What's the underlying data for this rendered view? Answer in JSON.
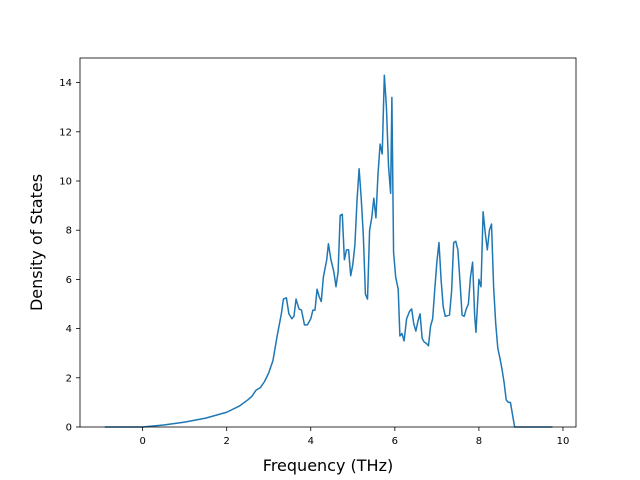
{
  "chart_data": {
    "type": "line",
    "title": "",
    "xlabel": "Frequency (THz)",
    "ylabel": "Density of States",
    "xlim": [
      -1.49,
      10.31
    ],
    "ylim": [
      0,
      15
    ],
    "xticks": [
      0,
      2,
      4,
      6,
      8,
      10
    ],
    "yticks": [
      0,
      2,
      4,
      6,
      8,
      10,
      12,
      14
    ],
    "xtick_labels": [
      "0",
      "2",
      "4",
      "6",
      "8",
      "10"
    ],
    "ytick_labels": [
      "0",
      "2",
      "4",
      "6",
      "8",
      "10",
      "12",
      "14"
    ],
    "grid": false,
    "legend": "none",
    "series": [
      {
        "color": "#1f77b4",
        "points": [
          [
            -0.9,
            0.0
          ],
          [
            0.0,
            0.0
          ],
          [
            0.5,
            0.08
          ],
          [
            1.0,
            0.2
          ],
          [
            1.5,
            0.36
          ],
          [
            2.0,
            0.6
          ],
          [
            2.3,
            0.85
          ],
          [
            2.5,
            1.1
          ],
          [
            2.6,
            1.25
          ],
          [
            2.7,
            1.5
          ],
          [
            2.8,
            1.6
          ],
          [
            2.9,
            1.85
          ],
          [
            3.0,
            2.2
          ],
          [
            3.1,
            2.7
          ],
          [
            3.2,
            3.7
          ],
          [
            3.3,
            4.6
          ],
          [
            3.35,
            5.2
          ],
          [
            3.42,
            5.25
          ],
          [
            3.48,
            4.6
          ],
          [
            3.55,
            4.4
          ],
          [
            3.6,
            4.5
          ],
          [
            3.65,
            5.2
          ],
          [
            3.72,
            4.8
          ],
          [
            3.78,
            4.75
          ],
          [
            3.85,
            4.15
          ],
          [
            3.92,
            4.15
          ],
          [
            4.0,
            4.4
          ],
          [
            4.05,
            4.75
          ],
          [
            4.1,
            4.75
          ],
          [
            4.15,
            5.6
          ],
          [
            4.2,
            5.3
          ],
          [
            4.25,
            5.1
          ],
          [
            4.3,
            6.1
          ],
          [
            4.38,
            6.8
          ],
          [
            4.42,
            7.45
          ],
          [
            4.48,
            6.8
          ],
          [
            4.55,
            6.3
          ],
          [
            4.6,
            5.7
          ],
          [
            4.65,
            6.3
          ],
          [
            4.7,
            8.6
          ],
          [
            4.75,
            8.65
          ],
          [
            4.8,
            6.8
          ],
          [
            4.85,
            7.2
          ],
          [
            4.9,
            7.2
          ],
          [
            4.95,
            6.15
          ],
          [
            5.0,
            6.6
          ],
          [
            5.05,
            7.4
          ],
          [
            5.1,
            9.2
          ],
          [
            5.15,
            10.5
          ],
          [
            5.2,
            9.3
          ],
          [
            5.25,
            7.8
          ],
          [
            5.3,
            5.4
          ],
          [
            5.35,
            5.2
          ],
          [
            5.4,
            8.0
          ],
          [
            5.45,
            8.5
          ],
          [
            5.5,
            9.3
          ],
          [
            5.55,
            8.5
          ],
          [
            5.6,
            10.3
          ],
          [
            5.65,
            11.5
          ],
          [
            5.7,
            11.1
          ],
          [
            5.75,
            14.3
          ],
          [
            5.8,
            13.0
          ],
          [
            5.85,
            10.6
          ],
          [
            5.9,
            9.5
          ],
          [
            5.93,
            13.4
          ],
          [
            5.97,
            7.1
          ],
          [
            6.02,
            6.1
          ],
          [
            6.08,
            5.6
          ],
          [
            6.12,
            3.7
          ],
          [
            6.17,
            3.8
          ],
          [
            6.22,
            3.5
          ],
          [
            6.28,
            4.4
          ],
          [
            6.35,
            4.7
          ],
          [
            6.4,
            4.8
          ],
          [
            6.45,
            4.2
          ],
          [
            6.5,
            3.9
          ],
          [
            6.55,
            4.3
          ],
          [
            6.6,
            4.6
          ],
          [
            6.65,
            3.6
          ],
          [
            6.7,
            3.45
          ],
          [
            6.75,
            3.4
          ],
          [
            6.8,
            3.3
          ],
          [
            6.85,
            4.1
          ],
          [
            6.9,
            4.4
          ],
          [
            6.95,
            5.6
          ],
          [
            7.0,
            6.7
          ],
          [
            7.05,
            7.5
          ],
          [
            7.1,
            6.0
          ],
          [
            7.15,
            4.9
          ],
          [
            7.2,
            4.5
          ],
          [
            7.3,
            4.55
          ],
          [
            7.35,
            5.5
          ],
          [
            7.4,
            7.5
          ],
          [
            7.45,
            7.55
          ],
          [
            7.5,
            7.2
          ],
          [
            7.55,
            5.9
          ],
          [
            7.6,
            4.55
          ],
          [
            7.65,
            4.5
          ],
          [
            7.7,
            4.8
          ],
          [
            7.75,
            5.0
          ],
          [
            7.8,
            6.1
          ],
          [
            7.85,
            6.7
          ],
          [
            7.9,
            4.5
          ],
          [
            7.93,
            3.85
          ],
          [
            8.0,
            6.0
          ],
          [
            8.05,
            5.7
          ],
          [
            8.1,
            8.75
          ],
          [
            8.15,
            7.9
          ],
          [
            8.2,
            7.2
          ],
          [
            8.25,
            8.0
          ],
          [
            8.3,
            8.25
          ],
          [
            8.35,
            5.7
          ],
          [
            8.4,
            4.2
          ],
          [
            8.45,
            3.2
          ],
          [
            8.5,
            2.8
          ],
          [
            8.55,
            2.35
          ],
          [
            8.6,
            1.8
          ],
          [
            8.65,
            1.1
          ],
          [
            8.7,
            1.0
          ],
          [
            8.75,
            1.0
          ],
          [
            8.8,
            0.5
          ],
          [
            8.85,
            0.0
          ],
          [
            9.0,
            0.0
          ],
          [
            9.5,
            0.0
          ],
          [
            9.75,
            0.0
          ]
        ]
      }
    ]
  }
}
